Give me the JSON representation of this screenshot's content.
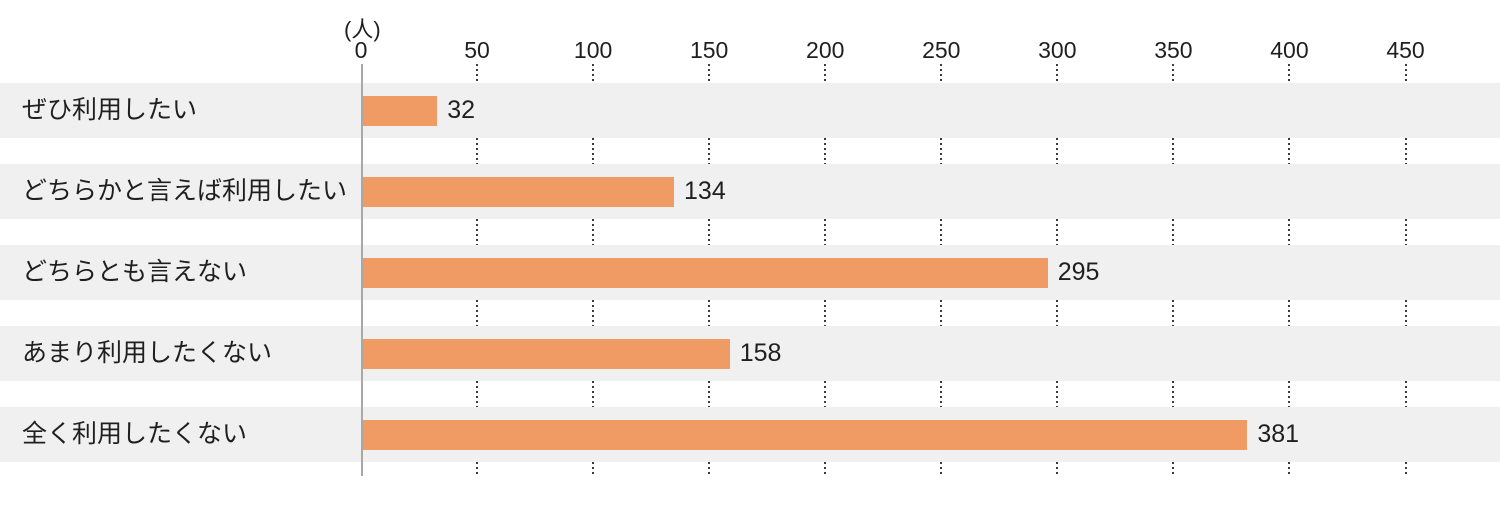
{
  "chart_data": {
    "type": "bar",
    "orientation": "horizontal",
    "title": "",
    "unit_label": "(人)",
    "categories": [
      "ぜひ利用したい",
      "どちらかと言えば利用したい",
      "どちらとも言えない",
      "あまり利用したくない",
      "全く利用したくない"
    ],
    "values": [
      32,
      134,
      295,
      158,
      381
    ],
    "data_labels_shown": true,
    "xlabel": "",
    "ylabel": "",
    "xlim": [
      0,
      450
    ],
    "x_ticks": [
      0,
      50,
      100,
      150,
      200,
      250,
      300,
      350,
      400,
      450
    ],
    "tick_axis_position": "top",
    "grid": "dotted-vertical-in-gaps",
    "legend": "none",
    "colors": {
      "bar": "#f09b64",
      "row_band": "#f0f0f0",
      "axis_line": "#a8a8a8",
      "grid_dots": "#3c3c3c",
      "text": "#1f1f1f",
      "background": "#ffffff"
    }
  }
}
